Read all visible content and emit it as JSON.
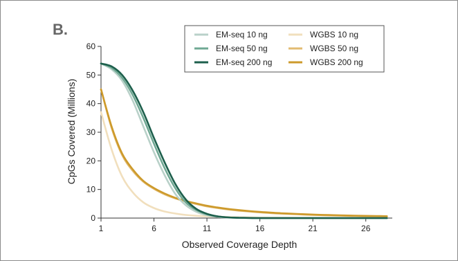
{
  "panel_label": "B.",
  "colors": {
    "em_10": "#b9d1c9",
    "em_50": "#6fa893",
    "em_200": "#1d5f4c",
    "wgbs_10": "#f1dfbd",
    "wgbs_50": "#e2bb71",
    "wgbs_200": "#cd9a2b",
    "axis": "#333333",
    "legend_border": "#555555"
  },
  "chart_data": {
    "type": "line",
    "title": "",
    "xlabel": "Observed Coverage Depth",
    "ylabel": "CpGs Covered (Millions)",
    "xlim": [
      1,
      28.5
    ],
    "ylim": [
      0,
      60
    ],
    "x_ticks": [
      1,
      6,
      11,
      16,
      21,
      26
    ],
    "y_ticks": [
      0,
      10,
      20,
      30,
      40,
      50,
      60
    ],
    "grid": false,
    "legend_position": "top-right",
    "x": [
      1,
      2,
      3,
      4,
      5,
      6,
      7,
      8,
      9,
      10,
      11,
      12,
      13,
      14,
      15,
      16,
      17,
      18,
      19,
      20,
      21,
      22,
      23,
      24,
      25,
      26,
      27,
      28
    ],
    "series": [
      {
        "name": "EM-seq 10 ng",
        "color_key": "em_10",
        "values": [
          54,
          52,
          48,
          41,
          32,
          23,
          15,
          8.5,
          4.5,
          2.2,
          1.0,
          0.4,
          0.2,
          0.1,
          0.05,
          0,
          0,
          0,
          0,
          0,
          0,
          0,
          0,
          0,
          0,
          0,
          0,
          0
        ]
      },
      {
        "name": "EM-seq 50 ng",
        "color_key": "em_50",
        "values": [
          54,
          52.5,
          49,
          43,
          35,
          26,
          17.5,
          10.5,
          5.5,
          2.8,
          1.3,
          0.6,
          0.25,
          0.1,
          0.05,
          0,
          0,
          0,
          0,
          0,
          0,
          0,
          0,
          0,
          0,
          0,
          0,
          0
        ]
      },
      {
        "name": "EM-seq 200 ng",
        "color_key": "em_200",
        "values": [
          54,
          53,
          50,
          44.5,
          37,
          28,
          19.5,
          12,
          6.5,
          3.2,
          1.5,
          0.6,
          0.25,
          0.1,
          0.05,
          0,
          0,
          0,
          0,
          0,
          0,
          0,
          0,
          0,
          0,
          0,
          0,
          0
        ]
      },
      {
        "name": "WGBS 10 ng",
        "color_key": "wgbs_10",
        "values": [
          37,
          24,
          14.5,
          9,
          5.5,
          3.5,
          2.3,
          1.6,
          1.1,
          0.8,
          0.6,
          0.45,
          0.35,
          0.28,
          0.22,
          0.18,
          0.15,
          0.12,
          0.1,
          0.08,
          0.07,
          0.06,
          0.05,
          0.04,
          0.03,
          0.03,
          0.02,
          0.02
        ]
      },
      {
        "name": "WGBS 50 ng",
        "color_key": "wgbs_50",
        "values": [
          45,
          31.5,
          22,
          16.5,
          12.7,
          10.2,
          8.3,
          6.9,
          5.8,
          4.9,
          4.1,
          3.5,
          3.0,
          2.6,
          2.3,
          2.0,
          1.75,
          1.55,
          1.4,
          1.25,
          1.1,
          1.0,
          0.9,
          0.8,
          0.72,
          0.65,
          0.6,
          0.55
        ]
      },
      {
        "name": "WGBS 200 ng",
        "color_key": "wgbs_200",
        "values": [
          45,
          32,
          22.5,
          17,
          13,
          10.5,
          8.6,
          7.1,
          6.0,
          5.1,
          4.3,
          3.7,
          3.2,
          2.8,
          2.45,
          2.15,
          1.9,
          1.7,
          1.52,
          1.37,
          1.24,
          1.12,
          1.02,
          0.93,
          0.85,
          0.78,
          0.72,
          0.66
        ]
      }
    ]
  }
}
